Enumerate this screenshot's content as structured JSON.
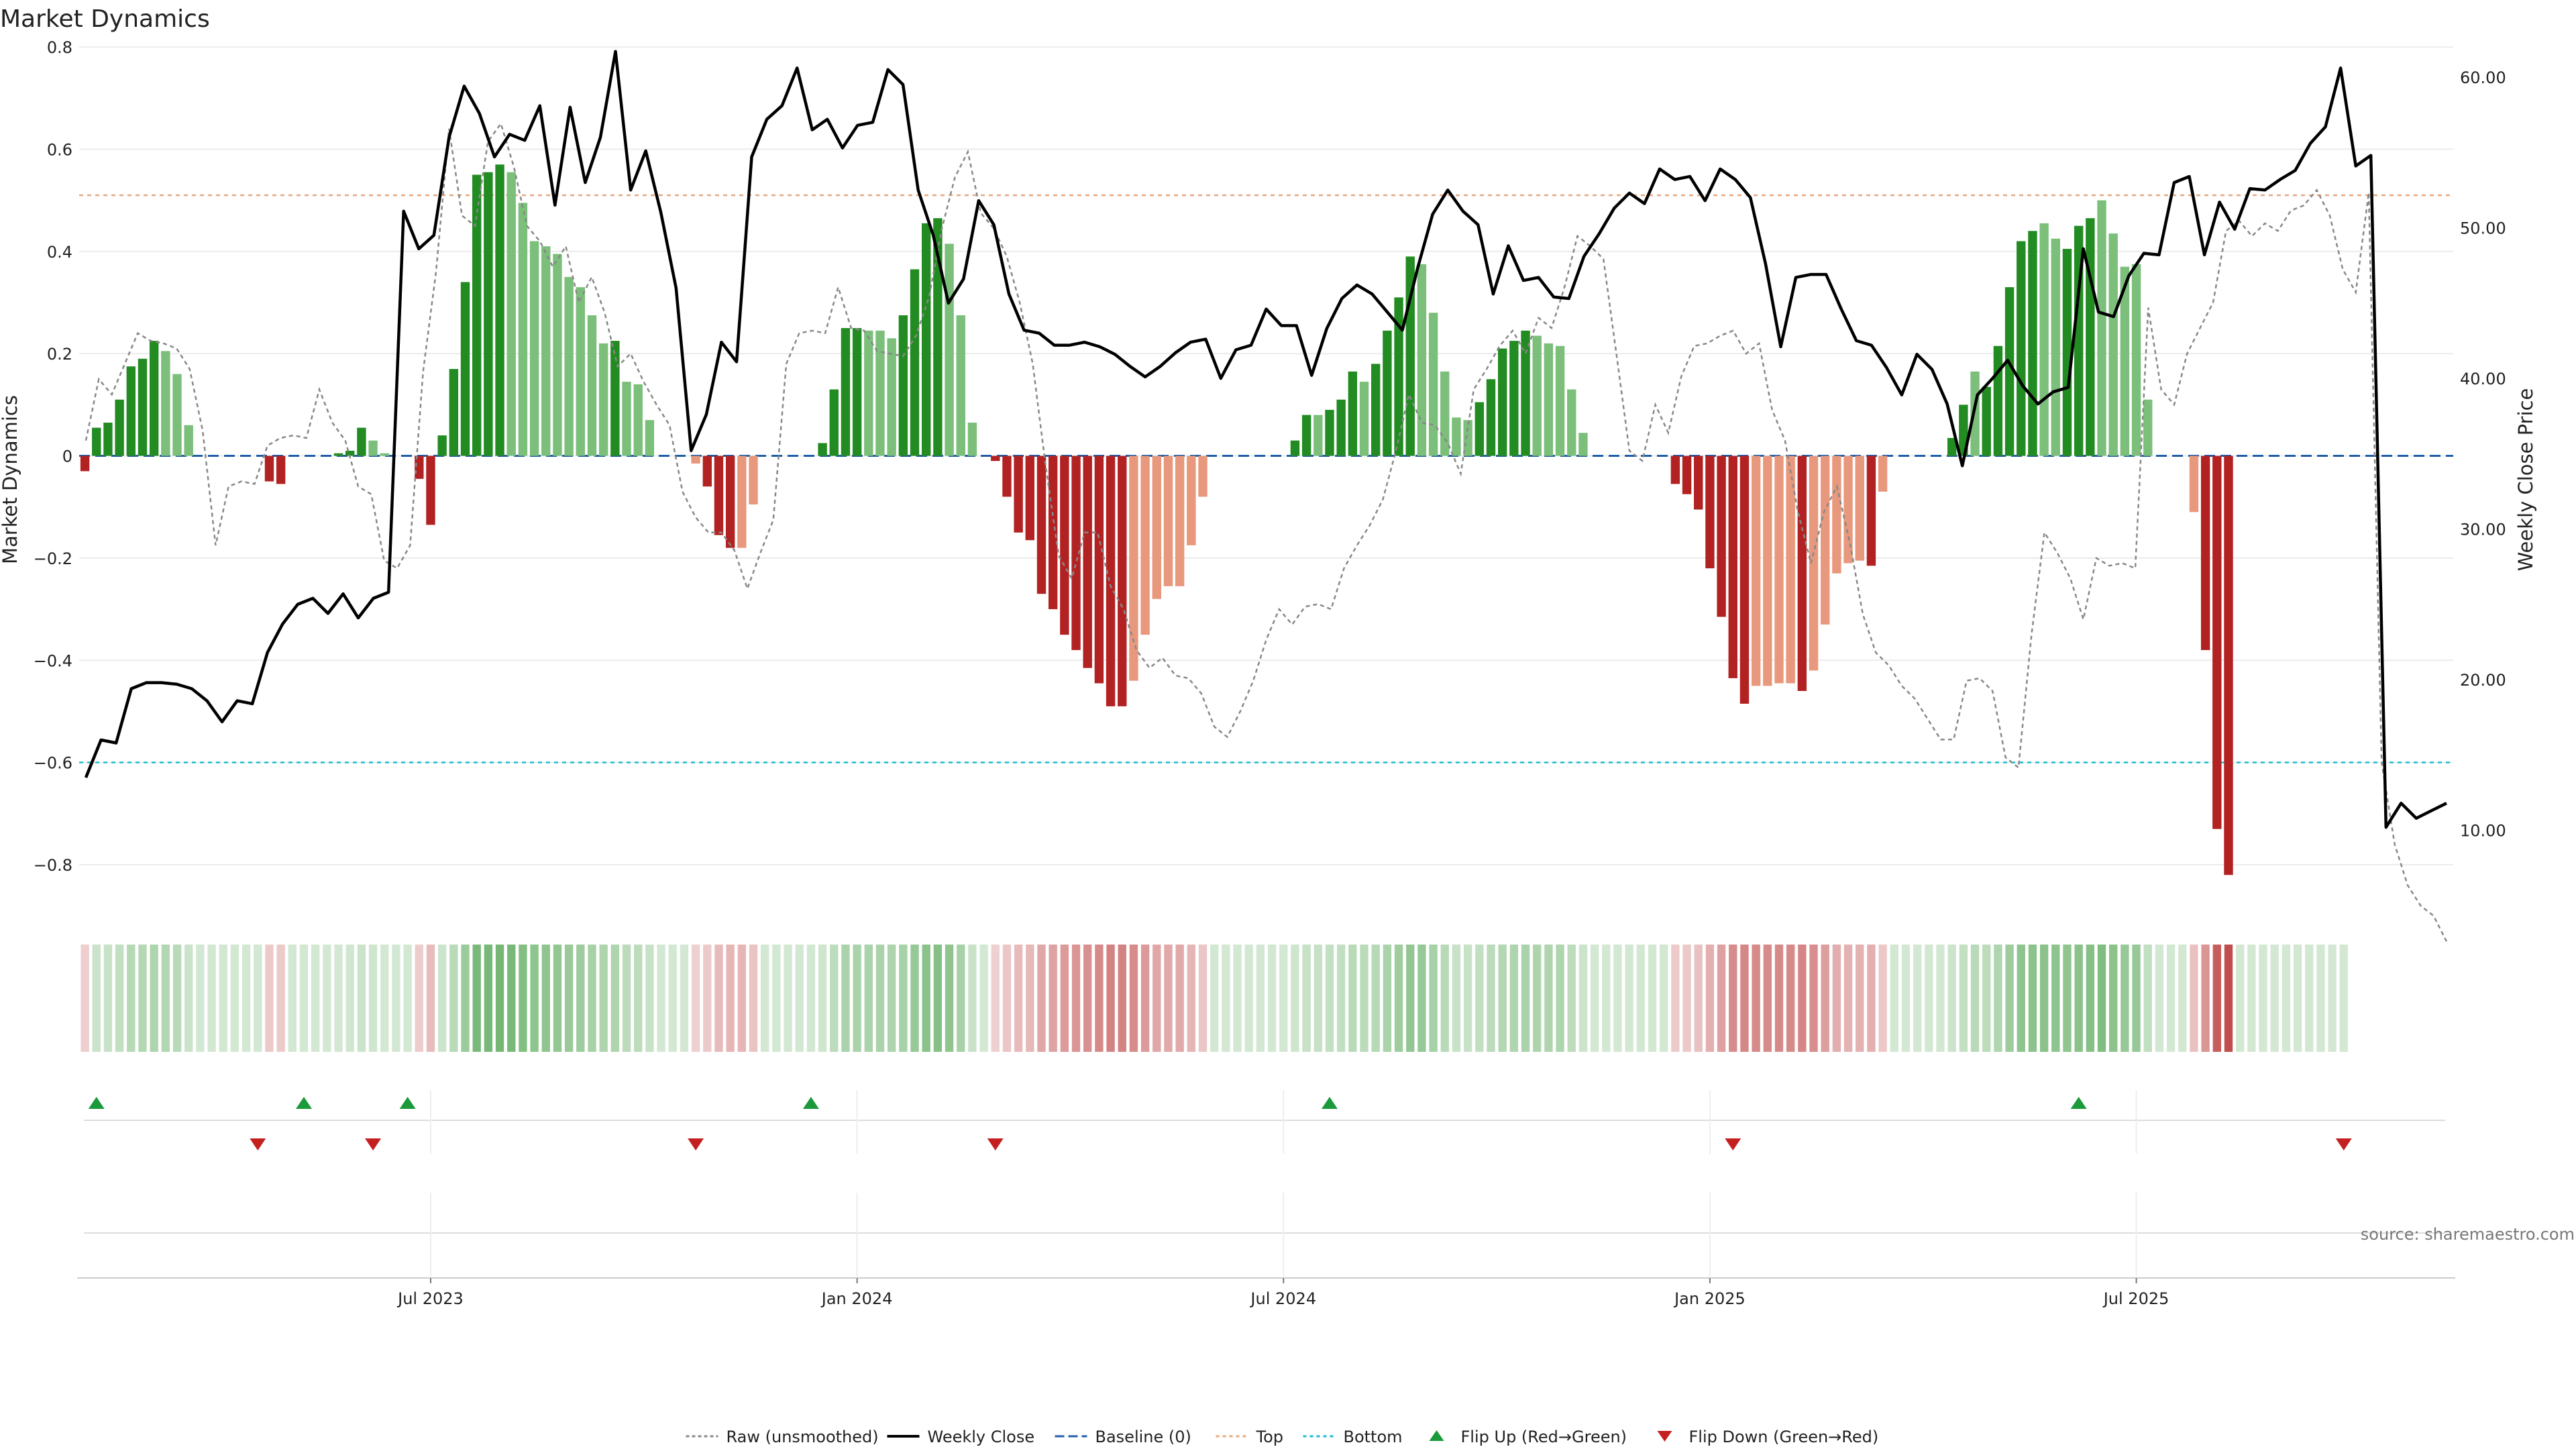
{
  "title": "Market Dynamics",
  "source_note": "source: sharemaestro.com",
  "colors": {
    "strong_green": "#228b22",
    "light_green": "#7bbf7b",
    "strong_red": "#b22222",
    "light_red": "#e8987c",
    "weekly_close": "#000000",
    "raw": "#888888",
    "baseline": "#1f5fa8",
    "top": "#e8a87c",
    "bottom": "#17becf",
    "flip_up": "#1a9a3a",
    "flip_down": "#c42020"
  },
  "chart_data": {
    "type": "bar",
    "title": "Market Dynamics",
    "ylabel_left": "Market Dynamics",
    "ylabel_right": "Weekly Close Price",
    "ylim_left": [
      -0.88,
      0.8
    ],
    "ylim_right": [
      5,
      62
    ],
    "yticks_left": [
      {
        "v": 0.8,
        "label": "0.8"
      },
      {
        "v": 0.6,
        "label": "0.6"
      },
      {
        "v": 0.4,
        "label": "0.4"
      },
      {
        "v": 0.2,
        "label": "0.2"
      },
      {
        "v": 0,
        "label": "0"
      },
      {
        "v": -0.2,
        "label": "−0.2"
      },
      {
        "v": -0.4,
        "label": "−0.4"
      },
      {
        "v": -0.6,
        "label": "−0.6"
      },
      {
        "v": -0.8,
        "label": "−0.8"
      }
    ],
    "yticks_right": [
      {
        "v": 60,
        "label": "60.00"
      },
      {
        "v": 50,
        "label": "50.00"
      },
      {
        "v": 40,
        "label": "40.00"
      },
      {
        "v": 30,
        "label": "30.00"
      },
      {
        "v": 20,
        "label": "20.00"
      },
      {
        "v": 10,
        "label": "10.00"
      }
    ],
    "xticks": [
      {
        "week": 30,
        "label": "Jul 2023"
      },
      {
        "week": 67,
        "label": "Jan 2024"
      },
      {
        "week": 104,
        "label": "Jul 2024"
      },
      {
        "week": 141,
        "label": "Jan 2025"
      },
      {
        "week": 178,
        "label": "Jul 2025"
      }
    ],
    "weeks": 206,
    "top_level": 0.51,
    "bottom_level": -0.6,
    "baseline": 0,
    "histogram": [
      -0.03,
      0.055,
      0.065,
      0.11,
      0.175,
      0.19,
      0.225,
      0.205,
      0.16,
      0.06,
      0,
      0,
      0,
      0,
      0,
      0,
      -0.05,
      -0.055,
      0,
      0,
      0,
      0,
      0.005,
      0.01,
      0.055,
      0.03,
      0.005,
      0,
      0,
      -0.045,
      -0.135,
      0.04,
      0.17,
      0.34,
      0.55,
      0.555,
      0.57,
      0.555,
      0.495,
      0.42,
      0.41,
      0.395,
      0.35,
      0.33,
      0.275,
      0.22,
      0.225,
      0.145,
      0.14,
      0.07,
      0,
      0,
      0,
      -0.015,
      -0.06,
      -0.155,
      -0.18,
      -0.18,
      -0.095,
      0,
      0,
      0,
      0,
      0,
      0.025,
      0.13,
      0.25,
      0.25,
      0.245,
      0.245,
      0.23,
      0.275,
      0.365,
      0.455,
      0.465,
      0.415,
      0.275,
      0.065,
      0,
      -0.01,
      -0.08,
      -0.15,
      -0.165,
      -0.27,
      -0.3,
      -0.35,
      -0.38,
      -0.415,
      -0.445,
      -0.49,
      -0.49,
      -0.44,
      -0.35,
      -0.28,
      -0.255,
      -0.255,
      -0.175,
      -0.08,
      0,
      0,
      0,
      0,
      0,
      0,
      0,
      0.03,
      0.08,
      0.08,
      0.09,
      0.11,
      0.165,
      0.145,
      0.18,
      0.245,
      0.31,
      0.39,
      0.375,
      0.28,
      0.165,
      0.075,
      0.07,
      0.105,
      0.15,
      0.21,
      0.225,
      0.245,
      0.235,
      0.22,
      0.215,
      0.13,
      0.045,
      0,
      0,
      0,
      0,
      0,
      0,
      0,
      -0.055,
      -0.075,
      -0.105,
      -0.22,
      -0.315,
      -0.435,
      -0.485,
      -0.45,
      -0.45,
      -0.445,
      -0.445,
      -0.46,
      -0.42,
      -0.33,
      -0.23,
      -0.21,
      -0.205,
      -0.215,
      -0.07,
      0,
      0,
      0,
      0,
      0,
      0.035,
      0.1,
      0.165,
      0.135,
      0.215,
      0.33,
      0.42,
      0.44,
      0.455,
      0.425,
      0.405,
      0.45,
      0.465,
      0.5,
      0.435,
      0.37,
      0.375,
      0.11,
      0,
      0,
      0,
      -0.11,
      -0.38,
      -0.73,
      -0.82,
      0,
      0,
      0,
      0,
      0,
      0,
      0,
      0,
      0,
      0
    ],
    "histogram_shade": [
      1,
      1,
      1,
      1,
      1,
      1,
      1,
      0,
      0,
      0,
      0,
      0,
      0,
      0,
      0,
      0,
      1,
      1,
      0,
      0,
      0,
      0,
      1,
      1,
      1,
      0,
      0,
      0,
      0,
      1,
      1,
      1,
      1,
      1,
      1,
      1,
      1,
      0,
      0,
      0,
      0,
      0,
      0,
      0,
      0,
      0,
      1,
      0,
      0,
      0,
      0,
      0,
      0,
      0,
      1,
      1,
      1,
      0,
      0,
      0,
      0,
      0,
      0,
      0,
      1,
      1,
      1,
      1,
      0,
      0,
      0,
      1,
      1,
      1,
      1,
      0,
      0,
      0,
      0,
      1,
      1,
      1,
      1,
      1,
      1,
      1,
      1,
      1,
      1,
      1,
      1,
      0,
      0,
      0,
      0,
      0,
      0,
      0,
      0,
      0,
      0,
      0,
      0,
      0,
      0,
      1,
      1,
      0,
      1,
      1,
      1,
      0,
      1,
      1,
      1,
      1,
      0,
      0,
      0,
      0,
      0,
      1,
      1,
      1,
      1,
      1,
      0,
      0,
      0,
      0,
      0,
      0,
      0,
      0,
      0,
      0,
      0,
      0,
      1,
      1,
      1,
      1,
      1,
      1,
      1,
      0,
      0,
      0,
      0,
      1,
      0,
      0,
      0,
      0,
      0,
      1,
      0,
      0,
      0,
      0,
      0,
      1,
      1,
      1,
      0,
      1,
      1,
      1,
      1,
      1,
      0,
      0,
      1,
      1,
      1,
      0,
      0,
      0,
      0,
      0,
      0,
      0,
      0,
      0,
      1,
      1,
      1,
      1,
      0,
      0,
      0,
      0,
      0,
      0,
      0,
      0,
      0,
      0
    ],
    "raw": [
      0.03,
      0.15,
      0.12,
      0.18,
      0.24,
      0.225,
      0.22,
      0.21,
      0.17,
      0.05,
      -0.175,
      -0.06,
      -0.05,
      -0.055,
      0.02,
      0.035,
      0.04,
      0.035,
      0.13,
      0.065,
      0.03,
      -0.06,
      -0.075,
      -0.205,
      -0.22,
      -0.175,
      0.165,
      0.36,
      0.64,
      0.47,
      0.45,
      0.615,
      0.65,
      0.565,
      0.45,
      0.42,
      0.37,
      0.41,
      0.3,
      0.35,
      0.28,
      0.175,
      0.2,
      0.145,
      0.1,
      0.06,
      -0.07,
      -0.12,
      -0.15,
      -0.15,
      -0.185,
      -0.26,
      -0.19,
      -0.125,
      0.18,
      0.24,
      0.245,
      0.24,
      0.33,
      0.25,
      0.245,
      0.205,
      0.2,
      0.195,
      0.235,
      0.31,
      0.445,
      0.545,
      0.595,
      0.475,
      0.445,
      0.39,
      0.3,
      0.18,
      -0.02,
      -0.195,
      -0.24,
      -0.15,
      -0.15,
      -0.255,
      -0.3,
      -0.38,
      -0.415,
      -0.395,
      -0.43,
      -0.435,
      -0.465,
      -0.53,
      -0.55,
      -0.5,
      -0.44,
      -0.36,
      -0.3,
      -0.33,
      -0.295,
      -0.29,
      -0.3,
      -0.22,
      -0.175,
      -0.135,
      -0.085,
      0.01,
      0.12,
      0.065,
      0.06,
      0.025,
      -0.035,
      0.13,
      0.17,
      0.215,
      0.245,
      0.2,
      0.27,
      0.25,
      0.33,
      0.43,
      0.41,
      0.385,
      0.2,
      0.01,
      -0.01,
      0.1,
      0.045,
      0.155,
      0.215,
      0.22,
      0.235,
      0.245,
      0.2,
      0.22,
      0.09,
      0.03,
      -0.11,
      -0.21,
      -0.11,
      -0.06,
      -0.17,
      -0.31,
      -0.385,
      -0.41,
      -0.45,
      -0.475,
      -0.515,
      -0.555,
      -0.555,
      -0.44,
      -0.435,
      -0.46,
      -0.59,
      -0.61,
      -0.35,
      -0.15,
      -0.19,
      -0.24,
      -0.32,
      -0.2,
      -0.215,
      -0.21,
      -0.22,
      0.29,
      0.13,
      0.1,
      0.2,
      0.25,
      0.3,
      0.44,
      0.46,
      0.43,
      0.455,
      0.44,
      0.48,
      0.49,
      0.52,
      0.47,
      0.365,
      0.32,
      0.515,
      -0.6,
      -0.76,
      -0.84,
      -0.88,
      -0.9,
      -0.95
    ],
    "weekly_close": [
      13.5,
      16,
      15.8,
      19.4,
      19.8,
      19.8,
      19.7,
      19.4,
      18.6,
      17.2,
      18.6,
      18.4,
      21.8,
      23.7,
      25,
      25.4,
      24.4,
      25.7,
      24.1,
      25.4,
      25.8,
      51.1,
      48.6,
      49.5,
      56,
      59.4,
      57.6,
      54.7,
      56.2,
      55.8,
      58.1,
      51.5,
      58,
      53,
      56,
      61.7,
      52.5,
      55.1,
      51,
      46,
      35.2,
      37.6,
      42.4,
      41.1,
      54.7,
      57.2,
      58.1,
      60.6,
      56.5,
      57.2,
      55.3,
      56.8,
      57,
      60.5,
      59.5,
      52.5,
      49.5,
      45,
      46.6,
      51.8,
      50.2,
      45.6,
      43.2,
      43,
      42.2,
      42.2,
      42.4,
      42.1,
      41.6,
      40.8,
      40.1,
      40.8,
      41.7,
      42.4,
      42.6,
      40,
      41.9,
      42.2,
      44.6,
      43.5,
      43.5,
      40.2,
      43.3,
      45.3,
      46.2,
      45.6,
      44.4,
      43.2,
      47.3,
      50.9,
      52.5,
      51.1,
      50.2,
      45.6,
      48.8,
      46.5,
      46.7,
      45.4,
      45.3,
      48.1,
      49.6,
      51.3,
      52.3,
      51.6,
      53.9,
      53.2,
      53.4,
      51.8,
      53.9,
      53.2,
      52,
      47.6,
      42.1,
      46.7,
      46.9,
      46.9,
      44.6,
      42.5,
      42.2,
      40.7,
      38.9,
      41.6,
      40.6,
      38.3,
      34.2,
      38.9,
      40,
      41.2,
      39.5,
      38.3,
      39.1,
      39.4,
      48.6,
      44.4,
      44.1,
      46.8,
      48.3,
      48.2,
      53,
      53.4,
      48.2,
      51.7,
      49.9,
      52.6,
      52.5,
      53.2,
      53.8,
      55.6,
      56.7,
      60.6,
      54.1,
      54.8,
      10.2,
      11.8,
      10.8,
      11.3,
      11.8
    ],
    "flips": [
      {
        "week": 1,
        "dir": "up"
      },
      {
        "week": 15,
        "dir": "down"
      },
      {
        "week": 19,
        "dir": "up"
      },
      {
        "week": 25,
        "dir": "down"
      },
      {
        "week": 28,
        "dir": "up"
      },
      {
        "week": 53,
        "dir": "down"
      },
      {
        "week": 63,
        "dir": "up"
      },
      {
        "week": 79,
        "dir": "down"
      },
      {
        "week": 108,
        "dir": "up"
      },
      {
        "week": 143,
        "dir": "down"
      },
      {
        "week": 173,
        "dir": "up"
      },
      {
        "week": 196,
        "dir": "down"
      }
    ],
    "legend": [
      {
        "key": "raw",
        "label": "Raw (unsmoothed)"
      },
      {
        "key": "weekly_close",
        "label": "Weekly Close"
      },
      {
        "key": "baseline",
        "label": "Baseline (0)"
      },
      {
        "key": "top",
        "label": "Top"
      },
      {
        "key": "bottom",
        "label": "Bottom"
      },
      {
        "key": "flip_up",
        "label": "Flip Up (Red→Green)"
      },
      {
        "key": "flip_down",
        "label": "Flip Down (Green→Red)"
      }
    ],
    "legend_placement": "bottom-center",
    "grid": true
  }
}
